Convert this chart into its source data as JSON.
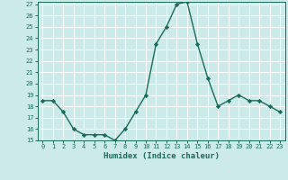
{
  "x": [
    0,
    1,
    2,
    3,
    4,
    5,
    6,
    7,
    8,
    9,
    10,
    11,
    12,
    13,
    14,
    15,
    16,
    17,
    18,
    19,
    20,
    21,
    22,
    23
  ],
  "y": [
    18.5,
    18.5,
    17.5,
    16.0,
    15.5,
    15.5,
    15.5,
    15.0,
    16.0,
    17.5,
    19.0,
    23.5,
    25.0,
    27.0,
    27.2,
    23.5,
    20.5,
    18.0,
    18.5,
    19.0,
    18.5,
    18.5,
    18.0,
    17.5
  ],
  "xlabel": "Humidex (Indice chaleur)",
  "line_color": "#1a6b5a",
  "marker": "D",
  "marker_size": 2.2,
  "bg_color": "#cceaea",
  "grid_color": "#ffffff",
  "ylim": [
    15,
    27
  ],
  "xlim_min": -0.5,
  "xlim_max": 23.5,
  "yticks": [
    15,
    16,
    17,
    18,
    19,
    20,
    21,
    22,
    23,
    24,
    25,
    26,
    27
  ],
  "xticks": [
    0,
    1,
    2,
    3,
    4,
    5,
    6,
    7,
    8,
    9,
    10,
    11,
    12,
    13,
    14,
    15,
    16,
    17,
    18,
    19,
    20,
    21,
    22,
    23
  ],
  "tick_fontsize": 5.0,
  "xlabel_fontsize": 6.5
}
